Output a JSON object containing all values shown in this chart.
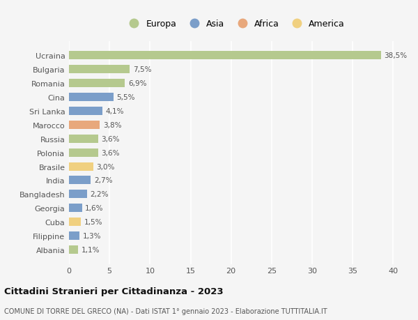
{
  "categories": [
    "Ucraina",
    "Bulgaria",
    "Romania",
    "Cina",
    "Sri Lanka",
    "Marocco",
    "Russia",
    "Polonia",
    "Brasile",
    "India",
    "Bangladesh",
    "Georgia",
    "Cuba",
    "Filippine",
    "Albania"
  ],
  "values": [
    38.5,
    7.5,
    6.9,
    5.5,
    4.1,
    3.8,
    3.6,
    3.6,
    3.0,
    2.7,
    2.2,
    1.6,
    1.5,
    1.3,
    1.1
  ],
  "labels": [
    "38,5%",
    "7,5%",
    "6,9%",
    "5,5%",
    "4,1%",
    "3,8%",
    "3,6%",
    "3,6%",
    "3,0%",
    "2,7%",
    "2,2%",
    "1,6%",
    "1,5%",
    "1,3%",
    "1,1%"
  ],
  "colors": [
    "#b5c98e",
    "#b5c98e",
    "#b5c98e",
    "#7b9ec9",
    "#7b9ec9",
    "#e8a87c",
    "#b5c98e",
    "#b5c98e",
    "#f0d080",
    "#7b9ec9",
    "#7b9ec9",
    "#7b9ec9",
    "#f0d080",
    "#7b9ec9",
    "#b5c98e"
  ],
  "legend_labels": [
    "Europa",
    "Asia",
    "Africa",
    "America"
  ],
  "legend_colors": [
    "#b5c98e",
    "#7b9ec9",
    "#e8a87c",
    "#f0d080"
  ],
  "title": "Cittadini Stranieri per Cittadinanza - 2023",
  "subtitle": "COMUNE DI TORRE DEL GRECO (NA) - Dati ISTAT 1° gennaio 2023 - Elaborazione TUTTITALIA.IT",
  "xlim": [
    0,
    41
  ],
  "xticks": [
    0,
    5,
    10,
    15,
    20,
    25,
    30,
    35,
    40
  ],
  "background_color": "#f5f5f5",
  "grid_color": "#ffffff",
  "label_color": "#555555",
  "title_color": "#111111",
  "subtitle_color": "#555555"
}
